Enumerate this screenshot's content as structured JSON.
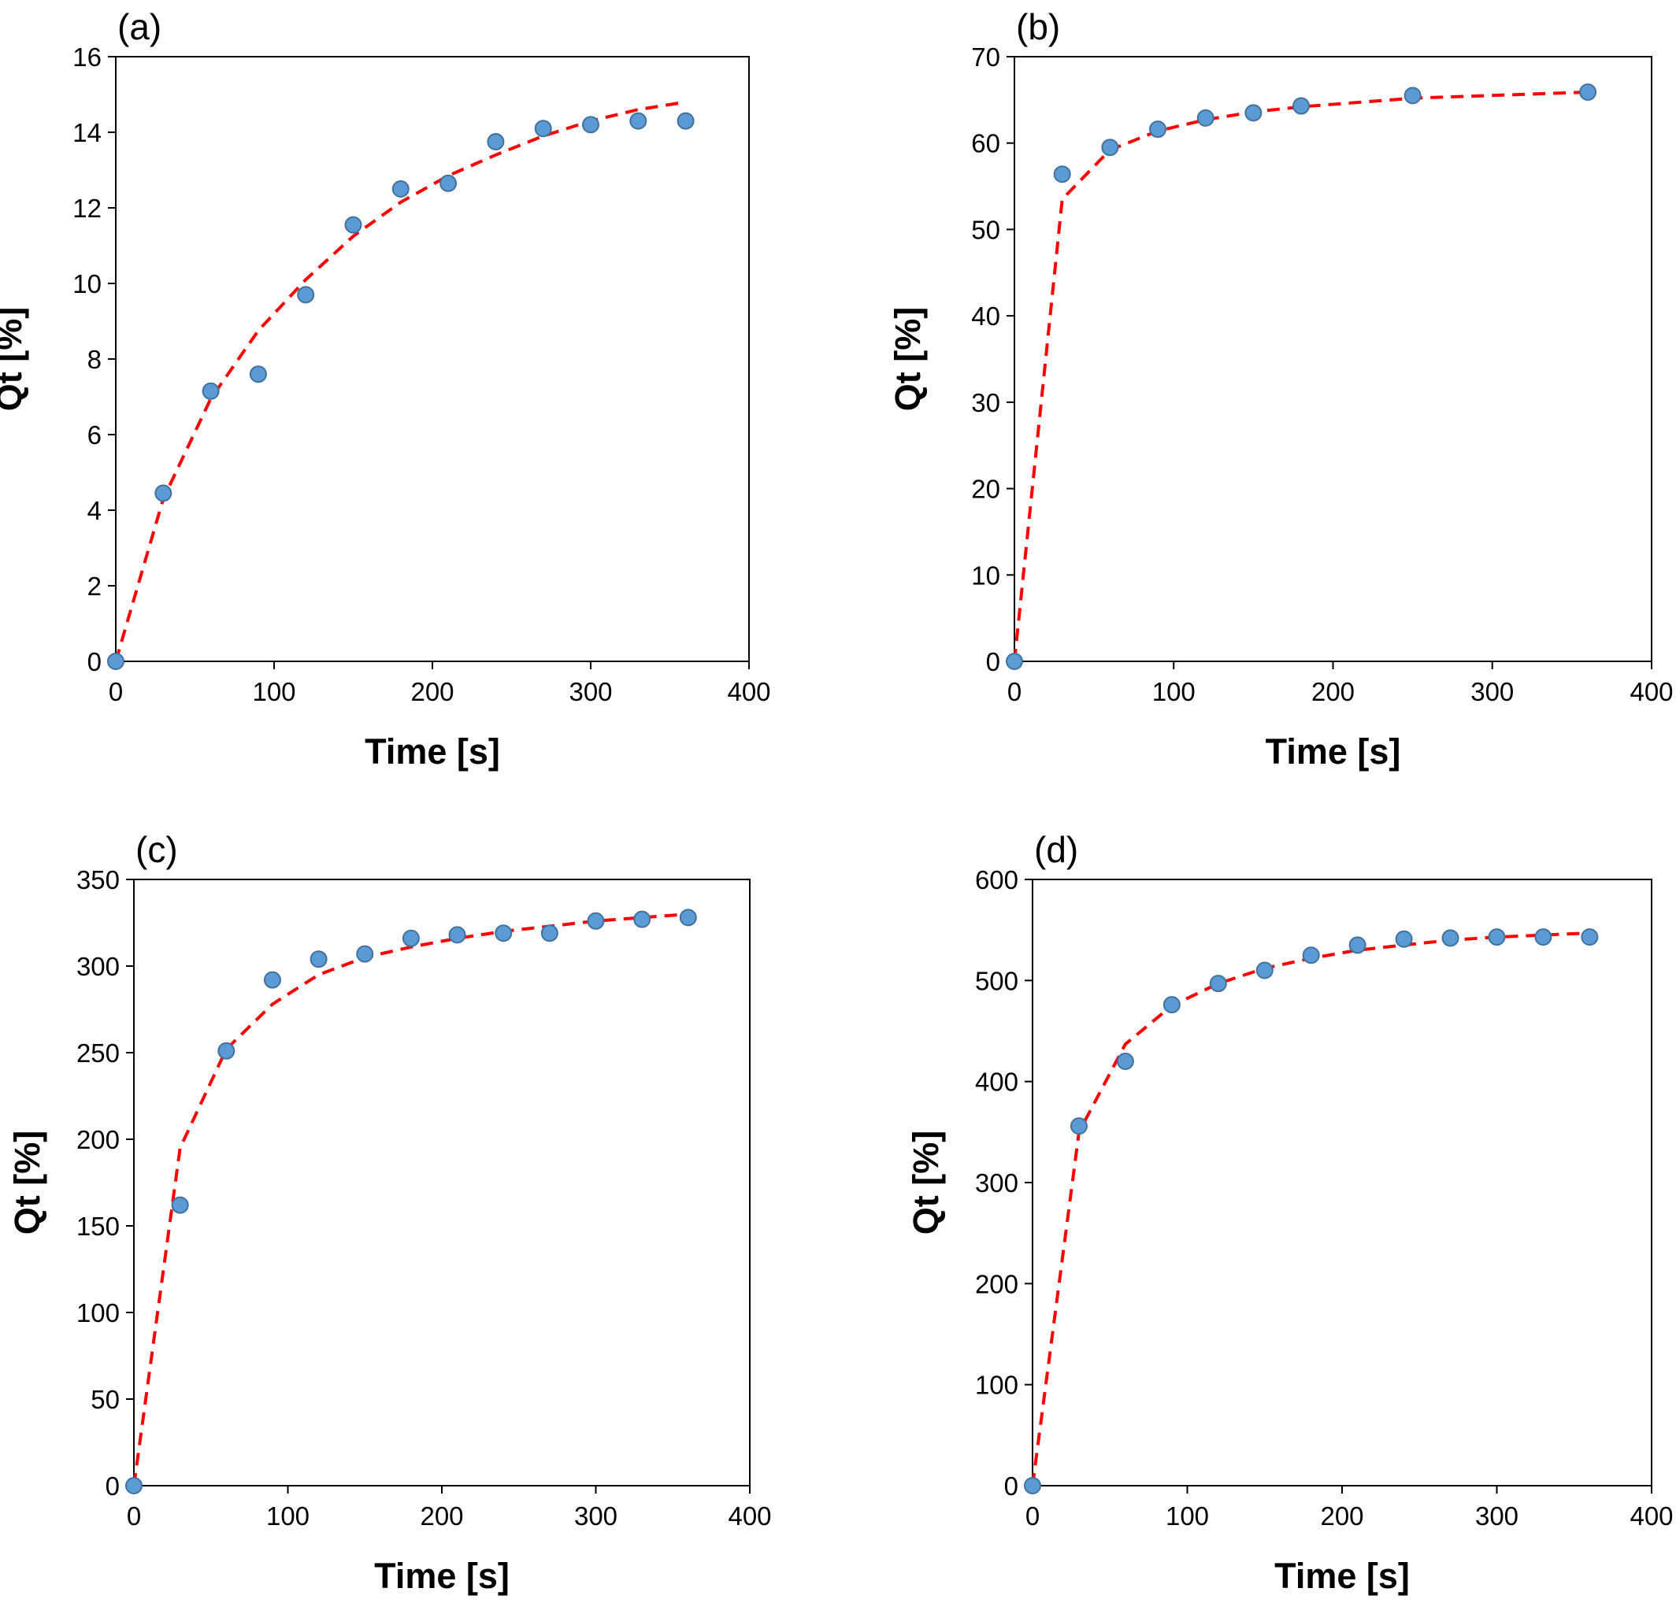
{
  "chart_data": [
    {
      "type": "scatter",
      "panel_label": "(a)",
      "xlabel": "Time [s]",
      "ylabel": "Qt [%]",
      "xlim": [
        0,
        400
      ],
      "ylim": [
        0,
        16
      ],
      "xticks": [
        0,
        100,
        200,
        300,
        400
      ],
      "yticks": [
        0,
        2,
        4,
        6,
        8,
        10,
        12,
        14,
        16
      ],
      "grid": false,
      "series": [
        {
          "style": "markers",
          "color": "#5b9bd5",
          "x": [
            0,
            30,
            60,
            90,
            120,
            150,
            180,
            210,
            240,
            270,
            300,
            330,
            360
          ],
          "y": [
            0,
            4.45,
            7.15,
            7.6,
            9.7,
            11.55,
            12.5,
            12.65,
            13.75,
            14.1,
            14.2,
            14.3,
            14.3
          ]
        },
        {
          "style": "dashed-line",
          "color": "#ff0000",
          "x": [
            0,
            30,
            60,
            90,
            120,
            150,
            180,
            210,
            240,
            270,
            300,
            330,
            360
          ],
          "y": [
            0,
            4.3,
            6.95,
            8.75,
            10.1,
            11.25,
            12.15,
            12.85,
            13.4,
            13.9,
            14.3,
            14.6,
            14.8
          ]
        }
      ]
    },
    {
      "type": "scatter",
      "panel_label": "(b)",
      "xlabel": "Time [s]",
      "ylabel": "Qt [%]",
      "xlim": [
        0,
        400
      ],
      "ylim": [
        0,
        70
      ],
      "xticks": [
        0,
        100,
        200,
        300,
        400
      ],
      "yticks": [
        0,
        10,
        20,
        30,
        40,
        50,
        60,
        70
      ],
      "grid": false,
      "series": [
        {
          "style": "markers",
          "color": "#5b9bd5",
          "x": [
            0,
            30,
            60,
            90,
            120,
            150,
            180,
            250,
            360
          ],
          "y": [
            0,
            56.4,
            59.5,
            61.6,
            62.9,
            63.5,
            64.3,
            65.5,
            65.9
          ]
        },
        {
          "style": "dashed-line",
          "color": "#ff0000",
          "x": [
            0,
            30,
            60,
            90,
            120,
            150,
            180,
            250,
            360
          ],
          "y": [
            0,
            53.5,
            59.2,
            61.4,
            62.7,
            63.6,
            64.2,
            65.2,
            65.9
          ]
        }
      ]
    },
    {
      "type": "scatter",
      "panel_label": "(c)",
      "xlabel": "Time [s]",
      "ylabel": "Qt [%]",
      "xlim": [
        0,
        400
      ],
      "ylim": [
        0,
        350
      ],
      "xticks": [
        0,
        100,
        200,
        300,
        400
      ],
      "yticks": [
        0,
        50,
        100,
        150,
        200,
        250,
        300,
        350
      ],
      "grid": false,
      "series": [
        {
          "style": "markers",
          "color": "#5b9bd5",
          "x": [
            0,
            30,
            60,
            90,
            120,
            150,
            180,
            210,
            240,
            270,
            300,
            330,
            360
          ],
          "y": [
            0,
            162,
            251,
            292,
            304,
            307,
            316,
            318,
            319,
            319,
            326,
            327,
            328
          ]
        },
        {
          "style": "dashed-line",
          "color": "#ff0000",
          "x": [
            0,
            30,
            60,
            90,
            120,
            150,
            180,
            210,
            240,
            270,
            300,
            330,
            360
          ],
          "y": [
            0,
            195,
            252,
            278,
            295,
            305,
            311,
            316,
            320,
            323,
            326,
            328,
            330
          ]
        }
      ]
    },
    {
      "type": "scatter",
      "panel_label": "(d)",
      "xlabel": "Time [s]",
      "ylabel": "Qt [%]",
      "xlim": [
        0,
        400
      ],
      "ylim": [
        0,
        600
      ],
      "xticks": [
        0,
        100,
        200,
        300,
        400
      ],
      "yticks": [
        0,
        100,
        200,
        300,
        400,
        500,
        600
      ],
      "grid": false,
      "series": [
        {
          "style": "markers",
          "color": "#5b9bd5",
          "x": [
            0,
            30,
            60,
            90,
            120,
            150,
            180,
            210,
            240,
            270,
            300,
            330,
            360
          ],
          "y": [
            0,
            356,
            420,
            476,
            497,
            510,
            525,
            535,
            541,
            542,
            543,
            543,
            543
          ]
        },
        {
          "style": "dashed-line",
          "color": "#ff0000",
          "x": [
            0,
            30,
            60,
            90,
            120,
            150,
            180,
            210,
            240,
            270,
            300,
            330,
            360
          ],
          "y": [
            0,
            350,
            437,
            475,
            497,
            512,
            522,
            530,
            535,
            540,
            543,
            545,
            547
          ]
        }
      ]
    }
  ]
}
